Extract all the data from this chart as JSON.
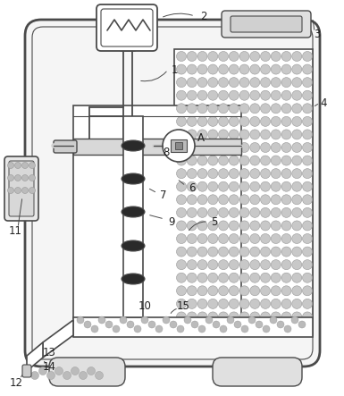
{
  "bg_color": "#ffffff",
  "lc": "#4a4a4a",
  "fig_width": 3.85,
  "fig_height": 4.43,
  "dpi": 100
}
